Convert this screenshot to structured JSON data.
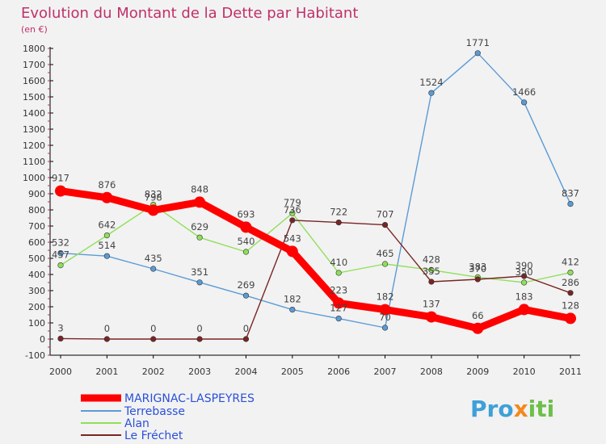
{
  "chart_data": {
    "type": "line",
    "title": "Evolution du Montant de la Dette par Habitant",
    "subtitle": "(en €)",
    "categories": [
      "2000",
      "2001",
      "2002",
      "2003",
      "2004",
      "2005",
      "2006",
      "2007",
      "2008",
      "2009",
      "2010",
      "2011"
    ],
    "ylim": [
      -100,
      1800
    ],
    "yticks": [
      -100,
      0,
      100,
      200,
      300,
      400,
      500,
      600,
      700,
      800,
      900,
      1000,
      1100,
      1200,
      1300,
      1400,
      1500,
      1600,
      1700,
      1800
    ],
    "grid": false,
    "legend_position": "bottom-left",
    "series": [
      {
        "name": "MARIGNAC-LASPEYRES",
        "color": "#ff0000",
        "values": [
          917,
          876,
          798,
          848,
          693,
          543,
          223,
          182,
          137,
          66,
          183,
          128
        ]
      },
      {
        "name": "Terrebasse",
        "color": "#5b9bd5",
        "values": [
          532,
          514,
          435,
          351,
          269,
          182,
          127,
          70,
          1524,
          1771,
          1466,
          837
        ]
      },
      {
        "name": "Alan",
        "color": "#8fdf5a",
        "values": [
          457,
          642,
          832,
          629,
          540,
          779,
          410,
          465,
          428,
          383,
          350,
          412
        ]
      },
      {
        "name": "Le Fréchet",
        "color": "#7a2424",
        "values": [
          3,
          0,
          0,
          0,
          0,
          736,
          722,
          707,
          355,
          370,
          390,
          286
        ]
      }
    ]
  },
  "brand": {
    "p": "Pro",
    "x": "x",
    "iti": "iti"
  }
}
